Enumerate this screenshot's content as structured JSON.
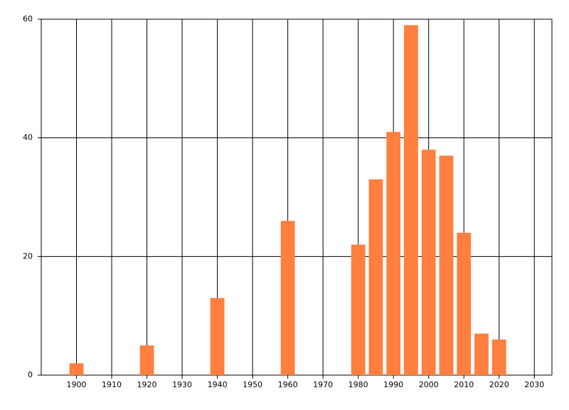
{
  "chart_data": {
    "type": "bar",
    "color": "#ff7f3f",
    "x": [
      1900,
      1920,
      1940,
      1960,
      1980,
      1985,
      1990,
      1995,
      2000,
      2005,
      2010,
      2015,
      2020
    ],
    "values": [
      2,
      5,
      13,
      26,
      22,
      33,
      41,
      59,
      38,
      37,
      24,
      7,
      6
    ],
    "xlim": [
      1890,
      2035
    ],
    "xticks": [
      1900,
      1910,
      1920,
      1930,
      1940,
      1950,
      1960,
      1970,
      1980,
      1990,
      2000,
      2010,
      2020,
      2030
    ],
    "ylim": [
      0,
      60
    ],
    "yticks": [
      0,
      20,
      40,
      60
    ],
    "grid": true
  }
}
